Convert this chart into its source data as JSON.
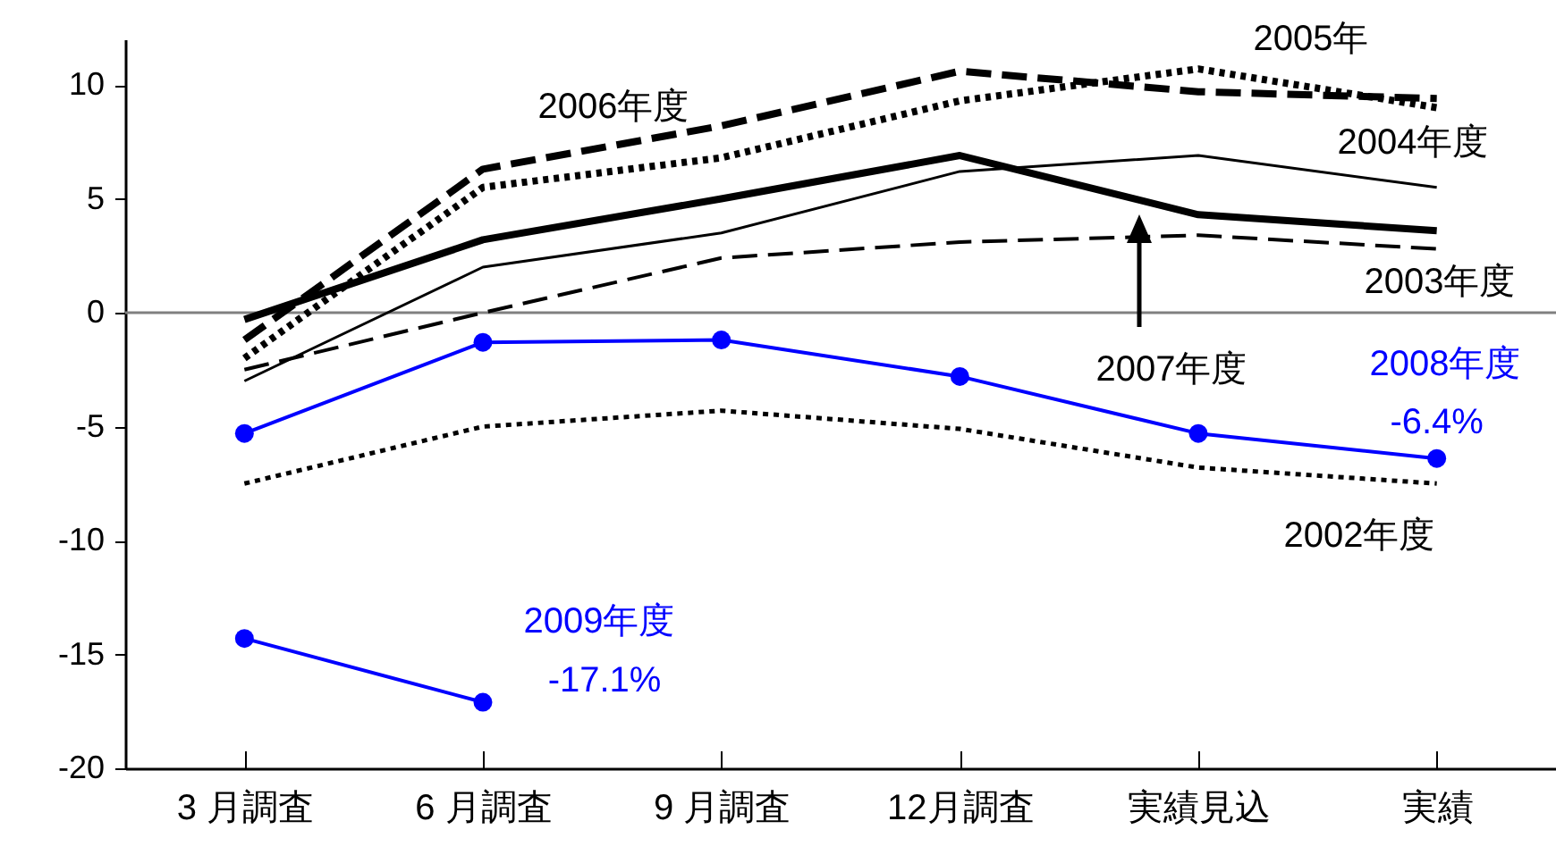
{
  "chart_data": {
    "type": "line",
    "categories": [
      "3 月調査",
      "6 月調査",
      "9 月調査",
      "12月調査",
      "実績見込",
      "実績"
    ],
    "series": [
      {
        "name": "2002年度",
        "color": "#000000",
        "line_style": "dotted",
        "values": [
          -7.5,
          -5.0,
          -4.3,
          -5.1,
          -6.8,
          -7.5
        ]
      },
      {
        "name": "2003年度",
        "color": "#000000",
        "line_style": "dashed",
        "values": [
          -2.5,
          0,
          2.4,
          3.1,
          3.4,
          2.8
        ]
      },
      {
        "name": "2004年度",
        "color": "#000000",
        "line_style": "solid",
        "values": [
          -3.0,
          2.0,
          3.5,
          6.2,
          6.9,
          5.5
        ]
      },
      {
        "name": "2005年",
        "color": "#000000",
        "line_style": "dotted",
        "values": [
          -2.0,
          5.5,
          6.8,
          9.3,
          10.7,
          9.0
        ]
      },
      {
        "name": "2006年度",
        "color": "#000000",
        "line_style": "dashed",
        "values": [
          -1.2,
          6.3,
          8.2,
          10.6,
          9.7,
          9.4
        ]
      },
      {
        "name": "2007年度",
        "color": "#000000",
        "line_style": "solid",
        "values": [
          -0.3,
          3.2,
          5.0,
          6.9,
          4.3,
          3.6
        ]
      },
      {
        "name": "2008年度",
        "color": "#0000ff",
        "line_style": "solid",
        "marker": "circle",
        "values": [
          -5.3,
          -1.3,
          -1.2,
          -2.8,
          -5.3,
          -6.4
        ]
      },
      {
        "name": "2009年度",
        "color": "#0000ff",
        "line_style": "solid",
        "marker": "circle",
        "values": [
          -14.3,
          -17.1,
          null,
          null,
          null,
          null
        ]
      }
    ],
    "ylim": [
      -20,
      12
    ],
    "yticks": [
      -20,
      -15,
      -10,
      -5,
      0,
      5,
      10
    ],
    "ref_lines": [
      {
        "axis": "y",
        "value": 0,
        "color": "#808080"
      }
    ],
    "annotations": [
      {
        "text": "-6.4%",
        "x": "実績",
        "y": -6.4
      },
      {
        "text": "-17.1%",
        "x": "6 月調査",
        "y": -17.1
      }
    ],
    "grid": false
  }
}
